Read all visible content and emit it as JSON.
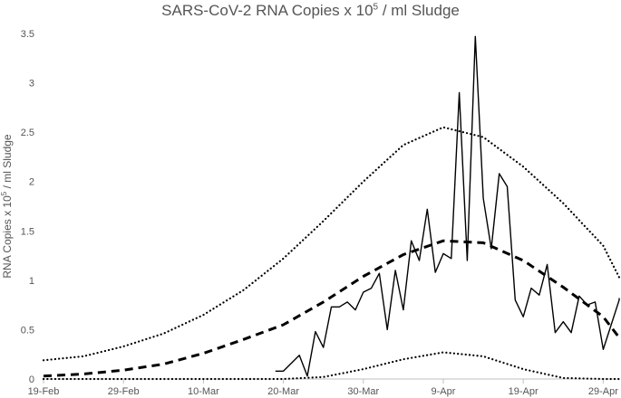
{
  "chart_data": {
    "type": "line",
    "title": {
      "prefix": "SARS-CoV-2 RNA Copies x 10",
      "superscript": "5",
      "suffix": " / ml Sludge"
    },
    "ylabel": {
      "prefix": "RNA Copies x 10",
      "superscript": "5",
      "suffix": " / ml Sludge"
    },
    "xlabel": "",
    "x_axis": {
      "start": "2020-02-19",
      "end": "2020-05-01",
      "ticks": [
        {
          "date": "2020-02-19",
          "label": "19-Feb"
        },
        {
          "date": "2020-02-29",
          "label": "29-Feb"
        },
        {
          "date": "2020-03-10",
          "label": "10-Mar"
        },
        {
          "date": "2020-03-20",
          "label": "20-Mar"
        },
        {
          "date": "2020-03-30",
          "label": "30-Mar"
        },
        {
          "date": "2020-04-09",
          "label": "9-Apr"
        },
        {
          "date": "2020-04-19",
          "label": "19-Apr"
        },
        {
          "date": "2020-04-29",
          "label": "29-Apr"
        }
      ]
    },
    "y_axis": {
      "ylim": [
        0,
        3.5
      ],
      "ticks": [
        {
          "value": 0,
          "label": "0"
        },
        {
          "value": 0.5,
          "label": "0.5"
        },
        {
          "value": 1,
          "label": "1"
        },
        {
          "value": 1.5,
          "label": "1.5"
        },
        {
          "value": 2,
          "label": "2"
        },
        {
          "value": 2.5,
          "label": "2.5"
        },
        {
          "value": 3,
          "label": "3"
        },
        {
          "value": 3.5,
          "label": "3.5"
        }
      ]
    },
    "grid": false,
    "series": [
      {
        "style": "solid",
        "color": "#000000",
        "points": [
          [
            "2020-03-19",
            0.08
          ],
          [
            "2020-03-20",
            0.08
          ],
          [
            "2020-03-22",
            0.24
          ],
          [
            "2020-03-23",
            0.03
          ],
          [
            "2020-03-24",
            0.48
          ],
          [
            "2020-03-25",
            0.32
          ],
          [
            "2020-03-26",
            0.73
          ],
          [
            "2020-03-27",
            0.73
          ],
          [
            "2020-03-28",
            0.78
          ],
          [
            "2020-03-29",
            0.7
          ],
          [
            "2020-03-30",
            0.88
          ],
          [
            "2020-03-31",
            0.92
          ],
          [
            "2020-04-01",
            1.07
          ],
          [
            "2020-04-02",
            0.5
          ],
          [
            "2020-04-03",
            1.1
          ],
          [
            "2020-04-04",
            0.7
          ],
          [
            "2020-04-05",
            1.4
          ],
          [
            "2020-04-06",
            1.2
          ],
          [
            "2020-04-07",
            1.72
          ],
          [
            "2020-04-08",
            1.08
          ],
          [
            "2020-04-09",
            1.27
          ],
          [
            "2020-04-10",
            1.22
          ],
          [
            "2020-04-11",
            2.9
          ],
          [
            "2020-04-12",
            1.2
          ],
          [
            "2020-04-13",
            3.47
          ],
          [
            "2020-04-14",
            1.83
          ],
          [
            "2020-04-15",
            1.32
          ],
          [
            "2020-04-16",
            2.08
          ],
          [
            "2020-04-17",
            1.95
          ],
          [
            "2020-04-18",
            0.8
          ],
          [
            "2020-04-19",
            0.63
          ],
          [
            "2020-04-20",
            0.92
          ],
          [
            "2020-04-21",
            0.85
          ],
          [
            "2020-04-22",
            1.16
          ],
          [
            "2020-04-23",
            0.47
          ],
          [
            "2020-04-24",
            0.58
          ],
          [
            "2020-04-25",
            0.47
          ],
          [
            "2020-04-26",
            0.84
          ],
          [
            "2020-04-27",
            0.75
          ],
          [
            "2020-04-28",
            0.78
          ],
          [
            "2020-04-29",
            0.3
          ],
          [
            "2020-04-30",
            0.55
          ],
          [
            "2020-05-01",
            0.8
          ],
          [
            "2020-05-02",
            0.82
          ]
        ]
      },
      {
        "style": "dashed",
        "color": "#000000",
        "points": [
          [
            "2020-02-19",
            0.03
          ],
          [
            "2020-02-24",
            0.05
          ],
          [
            "2020-02-29",
            0.09
          ],
          [
            "2020-03-05",
            0.15
          ],
          [
            "2020-03-10",
            0.26
          ],
          [
            "2020-03-15",
            0.4
          ],
          [
            "2020-03-20",
            0.55
          ],
          [
            "2020-03-25",
            0.78
          ],
          [
            "2020-03-30",
            1.04
          ],
          [
            "2020-04-04",
            1.26
          ],
          [
            "2020-04-09",
            1.4
          ],
          [
            "2020-04-14",
            1.38
          ],
          [
            "2020-04-19",
            1.2
          ],
          [
            "2020-04-24",
            0.93
          ],
          [
            "2020-04-29",
            0.63
          ],
          [
            "2020-05-02",
            0.42
          ]
        ]
      },
      {
        "style": "dotted",
        "color": "#000000",
        "points": [
          [
            "2020-02-19",
            0.19
          ],
          [
            "2020-02-24",
            0.23
          ],
          [
            "2020-02-29",
            0.33
          ],
          [
            "2020-03-05",
            0.46
          ],
          [
            "2020-03-10",
            0.65
          ],
          [
            "2020-03-15",
            0.9
          ],
          [
            "2020-03-20",
            1.22
          ],
          [
            "2020-03-25",
            1.6
          ],
          [
            "2020-03-30",
            2.0
          ],
          [
            "2020-04-04",
            2.37
          ],
          [
            "2020-04-09",
            2.55
          ],
          [
            "2020-04-14",
            2.45
          ],
          [
            "2020-04-19",
            2.15
          ],
          [
            "2020-04-24",
            1.78
          ],
          [
            "2020-04-29",
            1.35
          ],
          [
            "2020-05-02",
            1.03
          ]
        ]
      },
      {
        "style": "dotted",
        "color": "#000000",
        "points": [
          [
            "2020-02-19",
            0.0
          ],
          [
            "2020-03-10",
            0.0
          ],
          [
            "2020-03-20",
            0.0
          ],
          [
            "2020-03-25",
            0.02
          ],
          [
            "2020-03-30",
            0.1
          ],
          [
            "2020-04-04",
            0.2
          ],
          [
            "2020-04-09",
            0.27
          ],
          [
            "2020-04-14",
            0.23
          ],
          [
            "2020-04-19",
            0.1
          ],
          [
            "2020-04-24",
            0.01
          ],
          [
            "2020-04-29",
            0.0
          ],
          [
            "2020-05-02",
            0.0
          ]
        ]
      }
    ]
  }
}
